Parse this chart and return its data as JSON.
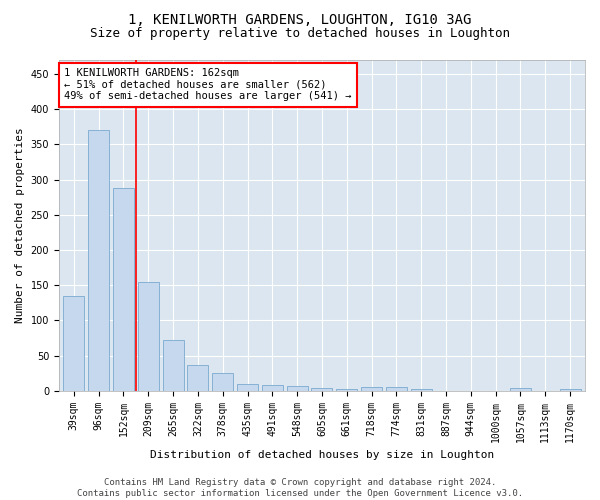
{
  "title": "1, KENILWORTH GARDENS, LOUGHTON, IG10 3AG",
  "subtitle": "Size of property relative to detached houses in Loughton",
  "xlabel": "Distribution of detached houses by size in Loughton",
  "ylabel": "Number of detached properties",
  "categories": [
    "39sqm",
    "96sqm",
    "152sqm",
    "209sqm",
    "265sqm",
    "322sqm",
    "378sqm",
    "435sqm",
    "491sqm",
    "548sqm",
    "605sqm",
    "661sqm",
    "718sqm",
    "774sqm",
    "831sqm",
    "887sqm",
    "944sqm",
    "1000sqm",
    "1057sqm",
    "1113sqm",
    "1170sqm"
  ],
  "values": [
    135,
    370,
    288,
    155,
    72,
    36,
    25,
    10,
    8,
    7,
    4,
    3,
    5,
    5,
    2,
    0,
    0,
    0,
    4,
    0,
    3
  ],
  "bar_color": "#c5d8ee",
  "bar_edge_color": "#7aaacf",
  "background_color": "#ffffff",
  "plot_bg_color": "#dce6f0",
  "grid_color": "#ffffff",
  "red_line_x": 2.5,
  "annotation_box_text": "1 KENILWORTH GARDENS: 162sqm\n← 51% of detached houses are smaller (562)\n49% of semi-detached houses are larger (541) →",
  "ylim": [
    0,
    470
  ],
  "yticks": [
    0,
    50,
    100,
    150,
    200,
    250,
    300,
    350,
    400,
    450
  ],
  "footer": "Contains HM Land Registry data © Crown copyright and database right 2024.\nContains public sector information licensed under the Open Government Licence v3.0.",
  "title_fontsize": 10,
  "subtitle_fontsize": 9,
  "axis_label_fontsize": 8,
  "tick_fontsize": 7,
  "annotation_fontsize": 7.5,
  "footer_fontsize": 6.5
}
